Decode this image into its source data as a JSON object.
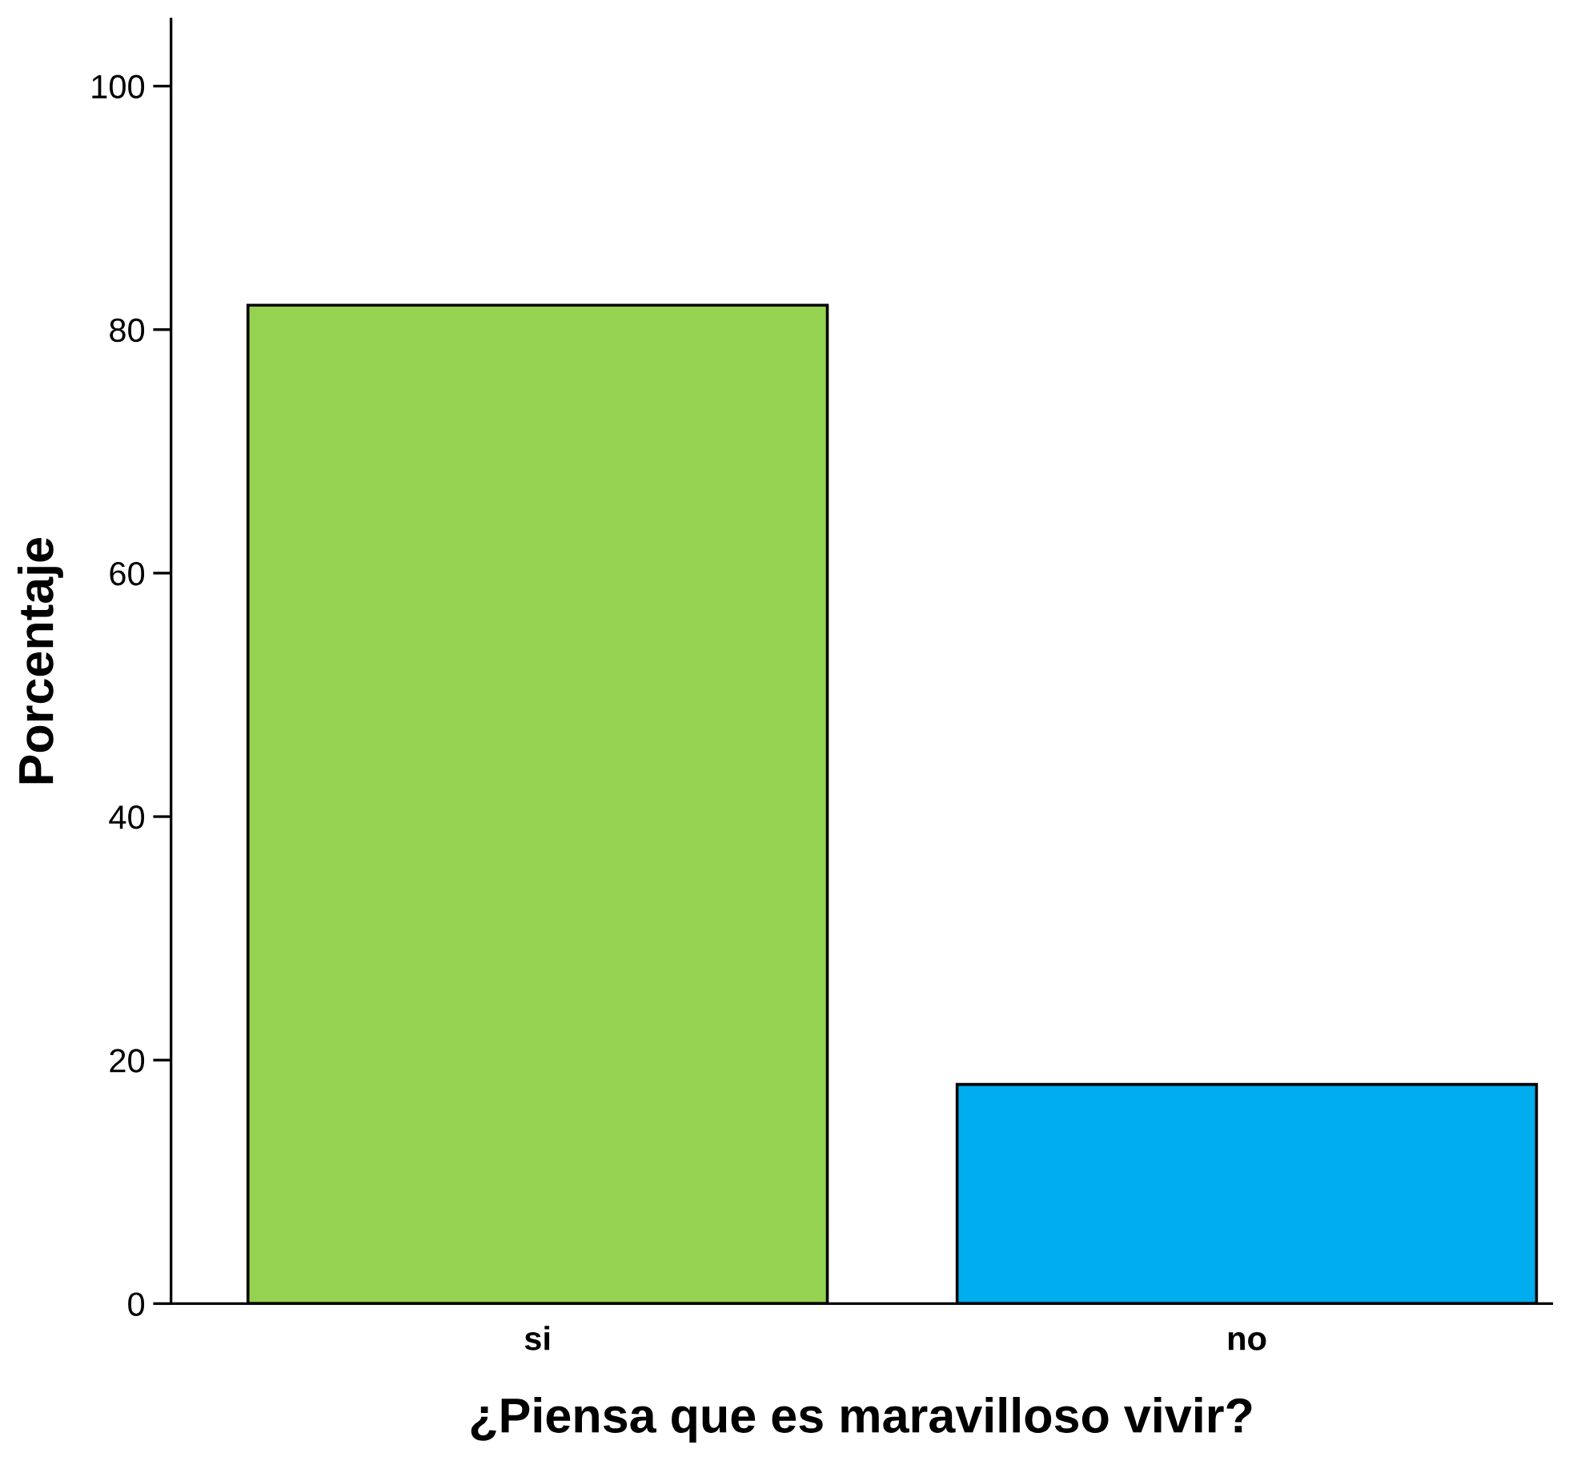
{
  "chart_data": {
    "type": "bar",
    "xlabel": "¿Piensa que es maravilloso vivir?",
    "ylabel": "Porcentaje",
    "categories": [
      "si",
      "no"
    ],
    "values": [
      82,
      18
    ],
    "colors": [
      "#95d251",
      "#00aeef"
    ],
    "ylim": [
      0,
      105.5
    ],
    "yticks": [
      0,
      20,
      40,
      60,
      80,
      100
    ],
    "grid": false,
    "legend": false
  }
}
